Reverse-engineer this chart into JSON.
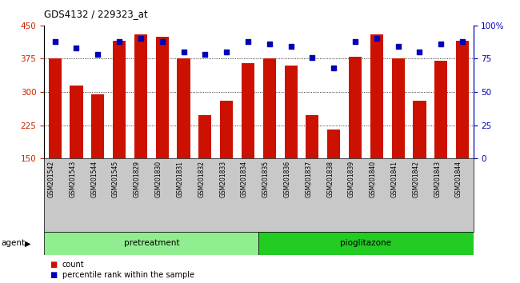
{
  "title": "GDS4132 / 229323_at",
  "samples": [
    "GSM201542",
    "GSM201543",
    "GSM201544",
    "GSM201545",
    "GSM201829",
    "GSM201830",
    "GSM201831",
    "GSM201832",
    "GSM201833",
    "GSM201834",
    "GSM201835",
    "GSM201836",
    "GSM201837",
    "GSM201838",
    "GSM201839",
    "GSM201840",
    "GSM201841",
    "GSM201842",
    "GSM201843",
    "GSM201844"
  ],
  "counts": [
    375,
    315,
    295,
    415,
    430,
    425,
    375,
    248,
    280,
    365,
    375,
    360,
    248,
    215,
    380,
    430,
    375,
    280,
    370,
    415
  ],
  "percentiles": [
    88,
    83,
    78,
    88,
    90,
    88,
    80,
    78,
    80,
    88,
    86,
    84,
    76,
    68,
    88,
    90,
    84,
    80,
    86,
    88
  ],
  "groups": [
    {
      "label": "pretreatment",
      "start": 0,
      "end": 9,
      "color": "#90EE90"
    },
    {
      "label": "pioglitazone",
      "start": 10,
      "end": 19,
      "color": "#22CC22"
    }
  ],
  "ylim_left": [
    150,
    450
  ],
  "ylim_right": [
    0,
    100
  ],
  "yticks_left": [
    150,
    225,
    300,
    375,
    450
  ],
  "yticks_right": [
    0,
    25,
    50,
    75,
    100
  ],
  "bar_color": "#CC1100",
  "dot_color": "#0000BB",
  "tick_label_bg": "#C8C8C8",
  "agent_label": "agent",
  "legend_count": "count",
  "legend_pct": "percentile rank within the sample",
  "grid_lines": [
    225,
    300,
    375
  ]
}
